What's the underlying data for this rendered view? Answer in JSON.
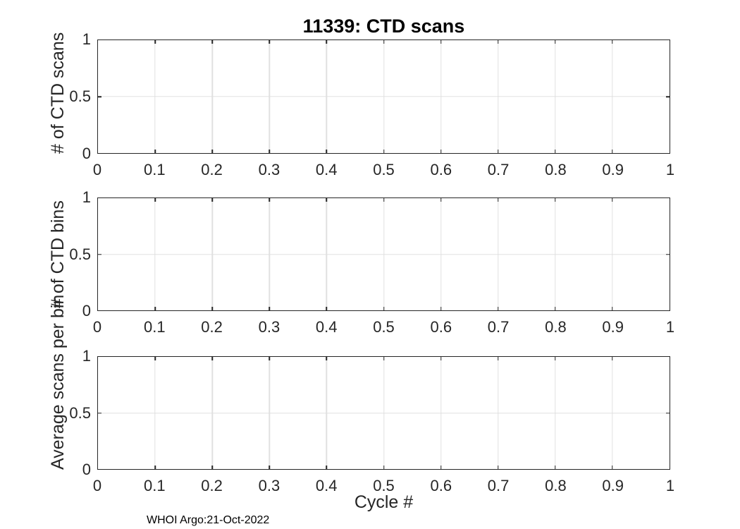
{
  "figure": {
    "footer": "WHOI Argo:21-Oct-2022"
  },
  "colors": {
    "background": "#ffffff",
    "axis": "#262626",
    "grid": "#e0e0e0",
    "title": "#000000"
  },
  "chart_data": [
    {
      "type": "line",
      "title": "11339: CTD scans",
      "ylabel": "# of CTD scans",
      "xlabel": "",
      "xlim": [
        0,
        1
      ],
      "ylim": [
        0,
        1
      ],
      "xticks": [
        0,
        0.1,
        0.2,
        0.3,
        0.4,
        0.5,
        0.6,
        0.7,
        0.8,
        0.9,
        1
      ],
      "xticklabels": [
        "0",
        "0.1",
        "0.2",
        "0.3",
        "0.4",
        "0.5",
        "0.6",
        "0.7",
        "0.8",
        "0.9",
        "1"
      ],
      "yticks": [
        0,
        0.5,
        1
      ],
      "yticklabels": [
        "0",
        "0.5",
        "1"
      ],
      "grid": true,
      "legend": false,
      "series": []
    },
    {
      "type": "line",
      "title": "",
      "ylabel": "# of CTD bins",
      "xlabel": "",
      "xlim": [
        0,
        1
      ],
      "ylim": [
        0,
        1
      ],
      "xticks": [
        0,
        0.1,
        0.2,
        0.3,
        0.4,
        0.5,
        0.6,
        0.7,
        0.8,
        0.9,
        1
      ],
      "xticklabels": [
        "0",
        "0.1",
        "0.2",
        "0.3",
        "0.4",
        "0.5",
        "0.6",
        "0.7",
        "0.8",
        "0.9",
        "1"
      ],
      "yticks": [
        0,
        0.5,
        1
      ],
      "yticklabels": [
        "0",
        "0.5",
        "1"
      ],
      "grid": true,
      "legend": false,
      "series": []
    },
    {
      "type": "line",
      "title": "",
      "ylabel": "Average scans per bin",
      "xlabel": "Cycle #",
      "xlim": [
        0,
        1
      ],
      "ylim": [
        0,
        1
      ],
      "xticks": [
        0,
        0.1,
        0.2,
        0.3,
        0.4,
        0.5,
        0.6,
        0.7,
        0.8,
        0.9,
        1
      ],
      "xticklabels": [
        "0",
        "0.1",
        "0.2",
        "0.3",
        "0.4",
        "0.5",
        "0.6",
        "0.7",
        "0.8",
        "0.9",
        "1"
      ],
      "yticks": [
        0,
        0.5,
        1
      ],
      "yticklabels": [
        "0",
        "0.5",
        "1"
      ],
      "grid": true,
      "legend": false,
      "series": []
    }
  ]
}
